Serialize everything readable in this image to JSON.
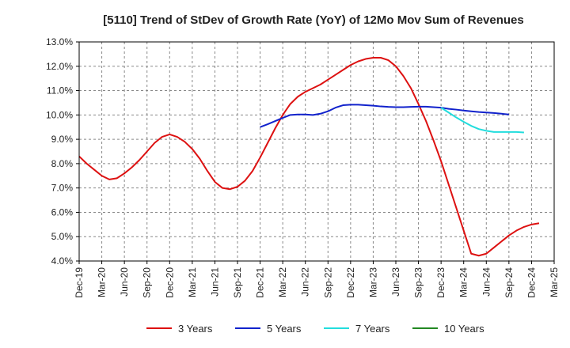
{
  "chart_data": {
    "type": "line",
    "title": "[5110]  Trend of StDev of Growth Rate (YoY) of 12Mo Mov Sum of Revenues",
    "xlabel": "",
    "ylabel": "",
    "ylim": [
      4.0,
      13.0
    ],
    "y_ticks": [
      4.0,
      5.0,
      6.0,
      7.0,
      8.0,
      9.0,
      10.0,
      11.0,
      12.0,
      13.0
    ],
    "y_tick_format": "percent_1dp",
    "x_tick_labels": [
      "Dec-19",
      "Mar-20",
      "Jun-20",
      "Sep-20",
      "Dec-20",
      "Mar-21",
      "Jun-21",
      "Sep-21",
      "Dec-21",
      "Mar-22",
      "Jun-22",
      "Sep-22",
      "Dec-22",
      "Mar-23",
      "Jun-23",
      "Sep-23",
      "Dec-23",
      "Mar-24",
      "Jun-24",
      "Sep-24",
      "Dec-24",
      "Mar-25"
    ],
    "x_months_total": 63,
    "grid": true,
    "legend_position": "bottom",
    "series": [
      {
        "name": "3 Years",
        "color": "#dd1111",
        "start_month": 0,
        "values": [
          8.3,
          8.0,
          7.75,
          7.5,
          7.35,
          7.4,
          7.6,
          7.85,
          8.15,
          8.5,
          8.85,
          9.1,
          9.2,
          9.1,
          8.9,
          8.6,
          8.2,
          7.7,
          7.25,
          7.0,
          6.95,
          7.05,
          7.3,
          7.7,
          8.25,
          8.85,
          9.45,
          10.0,
          10.45,
          10.75,
          10.95,
          11.1,
          11.25,
          11.45,
          11.65,
          11.85,
          12.05,
          12.2,
          12.3,
          12.35,
          12.35,
          12.25,
          12.0,
          11.6,
          11.1,
          10.45,
          9.75,
          8.95,
          8.1,
          7.15,
          6.2,
          5.25,
          4.3,
          4.22,
          4.3,
          4.55,
          4.8,
          5.05,
          5.25,
          5.4,
          5.5,
          5.55
        ]
      },
      {
        "name": "5 Years",
        "color": "#1122cc",
        "start_month": 24,
        "values": [
          9.5,
          9.62,
          9.75,
          9.88,
          10.0,
          10.02,
          10.02,
          10.0,
          10.05,
          10.15,
          10.3,
          10.4,
          10.42,
          10.42,
          10.4,
          10.38,
          10.35,
          10.33,
          10.32,
          10.32,
          10.33,
          10.34,
          10.34,
          10.32,
          10.3,
          10.25,
          10.22,
          10.18,
          10.15,
          10.12,
          10.1,
          10.08,
          10.05,
          10.02
        ]
      },
      {
        "name": "7 Years",
        "color": "#22dddd",
        "start_month": 48,
        "values": [
          10.3,
          10.1,
          9.9,
          9.72,
          9.55,
          9.42,
          9.35,
          9.3,
          9.3,
          9.3,
          9.3,
          9.28
        ]
      },
      {
        "name": "10 Years",
        "color": "#228822",
        "start_month": null,
        "values": []
      }
    ]
  }
}
